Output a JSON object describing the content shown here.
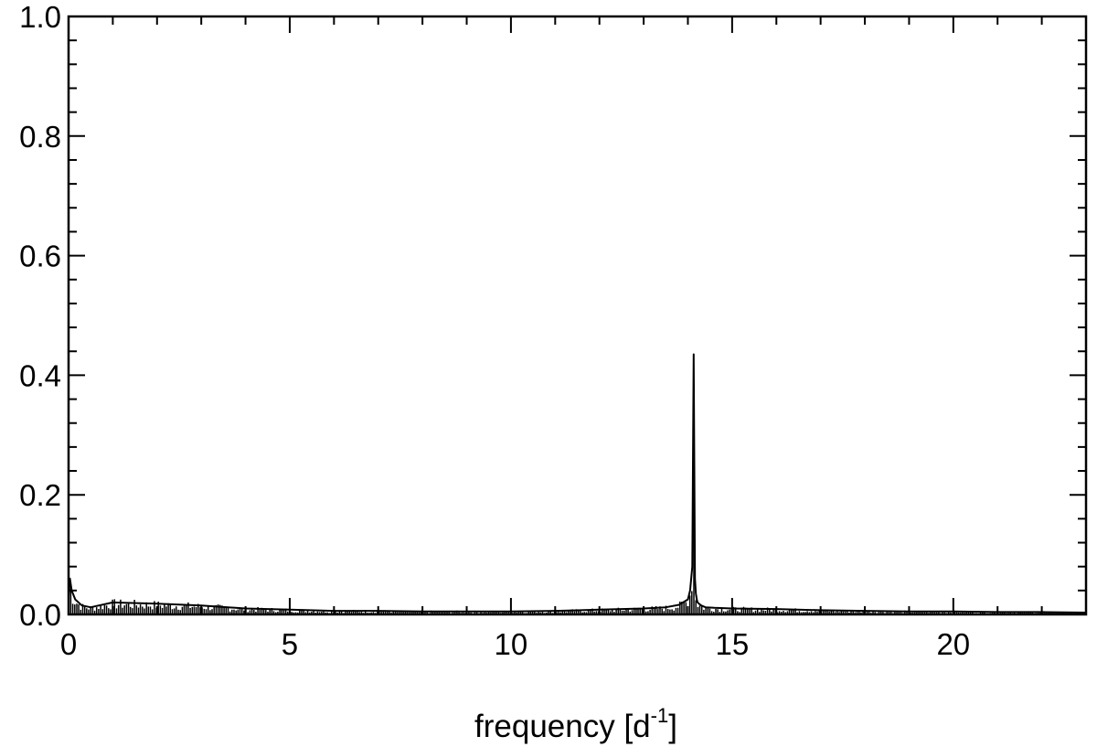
{
  "chart_data": {
    "type": "line",
    "xlabel": "frequency [d",
    "xlabel_superscript": "-1",
    "xlabel_suffix": "]",
    "ylabel": "",
    "xlim": [
      0,
      23
    ],
    "ylim": [
      0,
      1.0
    ],
    "x_ticks": [
      0,
      5,
      10,
      15,
      20
    ],
    "x_tick_labels": [
      "0",
      "5",
      "10",
      "15",
      "20"
    ],
    "y_ticks": [
      0,
      0.2,
      0.4,
      0.6,
      0.8,
      1.0
    ],
    "y_tick_labels": [
      "0.0",
      "0.2",
      "0.4",
      "0.6",
      "0.8",
      "1.0"
    ],
    "grid": false,
    "line_color": "#000000",
    "series": [
      {
        "x": [
          0.0,
          0.03,
          0.07,
          0.15,
          0.3,
          0.5,
          1.0,
          2.0,
          3.0,
          4.0,
          5.0,
          6.0,
          7.0,
          8.0,
          9.0,
          10.0,
          11.0,
          12.0,
          13.0,
          13.5,
          13.8,
          14.0,
          14.05,
          14.1,
          14.13,
          14.16,
          14.18,
          14.2,
          14.22,
          14.25,
          14.3,
          14.4,
          14.6,
          15.0,
          16.0,
          17.0,
          18.0,
          19.0,
          20.0,
          21.0,
          22.0,
          23.0
        ],
        "y": [
          0.03,
          0.06,
          0.04,
          0.025,
          0.015,
          0.012,
          0.02,
          0.018,
          0.015,
          0.01,
          0.008,
          0.006,
          0.006,
          0.005,
          0.005,
          0.005,
          0.006,
          0.008,
          0.01,
          0.012,
          0.016,
          0.025,
          0.04,
          0.08,
          0.435,
          0.06,
          0.035,
          0.025,
          0.02,
          0.018,
          0.015,
          0.012,
          0.011,
          0.01,
          0.009,
          0.007,
          0.006,
          0.005,
          0.005,
          0.004,
          0.004,
          0.003
        ]
      }
    ]
  }
}
